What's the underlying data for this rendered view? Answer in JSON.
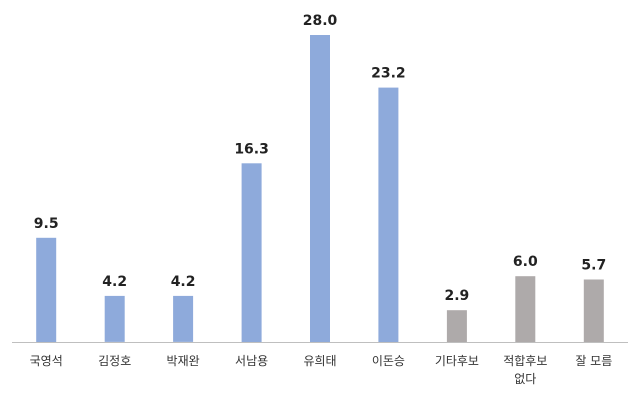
{
  "chart_data": {
    "type": "bar",
    "title": "",
    "xlabel": "",
    "ylabel": "",
    "ylim": [
      0,
      30
    ],
    "grid": false,
    "legend": "none",
    "categories": [
      "국영석",
      "김정호",
      "박재완",
      "서남용",
      "유희태",
      "이돈승",
      "기타후보",
      "적합후보\n없다",
      "잘 모름"
    ],
    "values": [
      9.5,
      4.2,
      4.2,
      16.3,
      28.0,
      23.2,
      2.9,
      6.0,
      5.7
    ],
    "value_labels": [
      "9.5",
      "4.2",
      "4.2",
      "16.3",
      "28.0",
      "23.2",
      "2.9",
      "6.0",
      "5.7"
    ],
    "colors": [
      "#8eaadb",
      "#8eaadb",
      "#8eaadb",
      "#8eaadb",
      "#8eaadb",
      "#8eaadb",
      "#aeaaaa",
      "#aeaaaa",
      "#aeaaaa"
    ],
    "axis_color": "#bfbfbf"
  }
}
